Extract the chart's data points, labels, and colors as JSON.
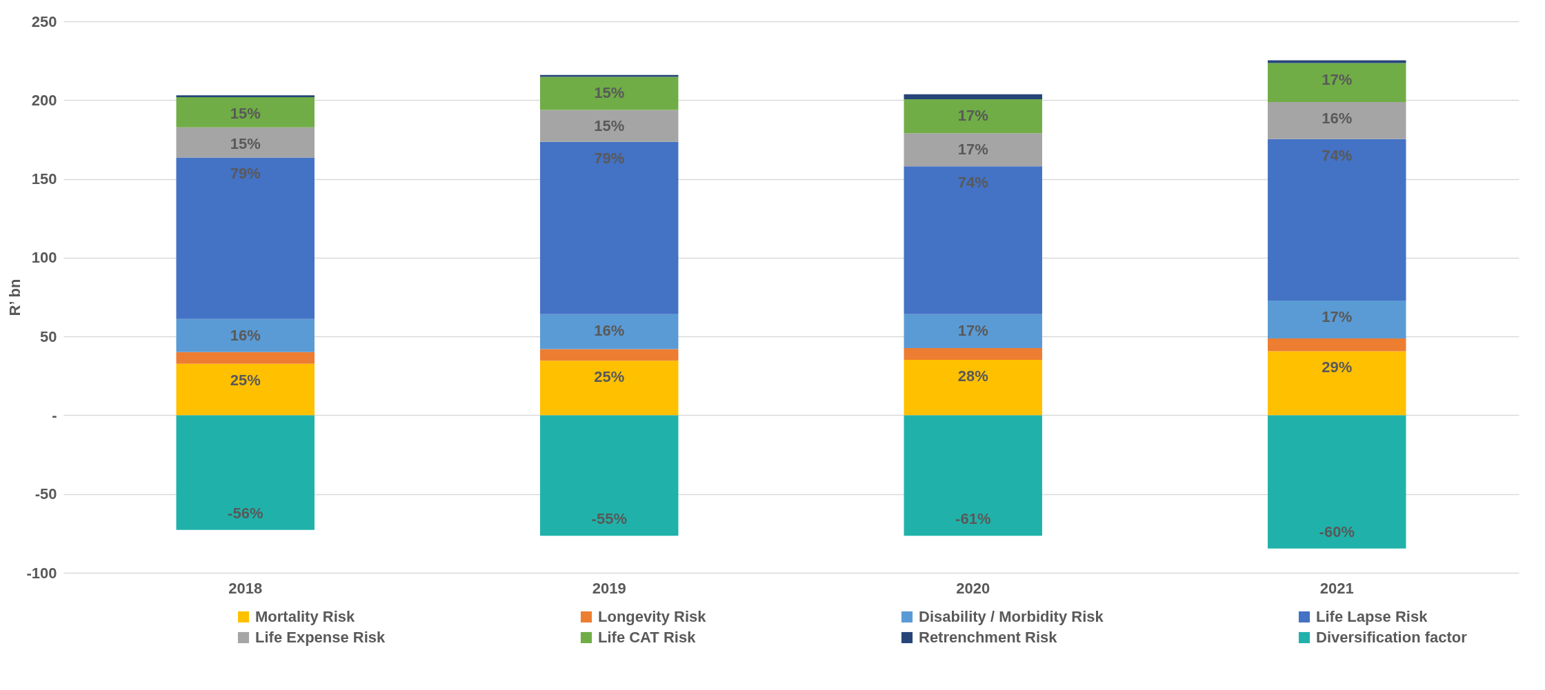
{
  "chart_data": {
    "type": "bar",
    "stacked": true,
    "ylabel": "R’ bn",
    "categories": [
      "2018",
      "2019",
      "2020",
      "2021"
    ],
    "series": [
      {
        "name": "Mortality Risk",
        "color": "#ffc000",
        "values": [
          32.7,
          34.6,
          35.2,
          40.7
        ]
      },
      {
        "name": "Longevity Risk",
        "color": "#ed7d31",
        "values": [
          7.4,
          7.4,
          7.4,
          8.1
        ]
      },
      {
        "name": "Disability / Morbidity Risk",
        "color": "#5b9bd5",
        "values": [
          21,
          22.2,
          21.6,
          24
        ]
      },
      {
        "name": "Life Lapse Risk",
        "color": "#4472c4",
        "values": [
          102.5,
          109.3,
          93.8,
          102.5
        ]
      },
      {
        "name": "Life Expense Risk",
        "color": "#a5a5a5",
        "values": [
          19.1,
          20.3,
          21,
          23.5
        ]
      },
      {
        "name": "Life CAT Risk",
        "color": "#70ad47",
        "values": [
          19.2,
          21,
          21.6,
          24.7
        ]
      },
      {
        "name": "Retrenchment Risk",
        "color": "#264478",
        "values": [
          1.2,
          1.2,
          3.1,
          1.8
        ]
      },
      {
        "name": "Diversification factor",
        "color": "#20b2aa",
        "values": [
          -72.8,
          -76.5,
          -76.5,
          -84.6
        ]
      }
    ],
    "annotations": [
      {
        "text": "25%",
        "x": "2018",
        "y": 32.7
      },
      {
        "text": "25%",
        "x": "2019",
        "y": 34.6
      },
      {
        "text": "28%",
        "x": "2020",
        "y": 35.2
      },
      {
        "text": "29%",
        "x": "2021",
        "y": 40.7
      },
      {
        "text": "16%",
        "x": "2018",
        "y": 61.1
      },
      {
        "text": "16%",
        "x": "2019",
        "y": 64.2
      },
      {
        "text": "17%",
        "x": "2020",
        "y": 64.2
      },
      {
        "text": "17%",
        "x": "2021",
        "y": 72.8
      },
      {
        "text": "79%",
        "x": "2018",
        "y": 163.6
      },
      {
        "text": "79%",
        "x": "2019",
        "y": 173.5
      },
      {
        "text": "74%",
        "x": "2020",
        "y": 158
      },
      {
        "text": "74%",
        "x": "2021",
        "y": 175.3
      },
      {
        "text": "15%",
        "x": "2018",
        "y": 182.7
      },
      {
        "text": "15%",
        "x": "2019",
        "y": 193.8
      },
      {
        "text": "17%",
        "x": "2020",
        "y": 179
      },
      {
        "text": "16%",
        "x": "2021",
        "y": 198.8
      },
      {
        "text": "15%",
        "x": "2018",
        "y": 201.9
      },
      {
        "text": "15%",
        "x": "2019",
        "y": 214.8
      },
      {
        "text": "17%",
        "x": "2020",
        "y": 200.6
      },
      {
        "text": "17%",
        "x": "2021",
        "y": 223.5
      },
      {
        "text": "-56%",
        "x": "2018",
        "y": -72.8
      },
      {
        "text": "-55%",
        "x": "2019",
        "y": -76.5
      },
      {
        "text": "-61%",
        "x": "2020",
        "y": -76.5
      },
      {
        "text": "-60%",
        "x": "2021",
        "y": -84.6
      }
    ],
    "ylim": [
      -100,
      250
    ],
    "yticks": [
      -100,
      -50,
      {
        "value": 0,
        "label": "-"
      },
      50,
      100,
      150,
      200,
      250
    ],
    "grid": "y",
    "legend": "bottom"
  }
}
